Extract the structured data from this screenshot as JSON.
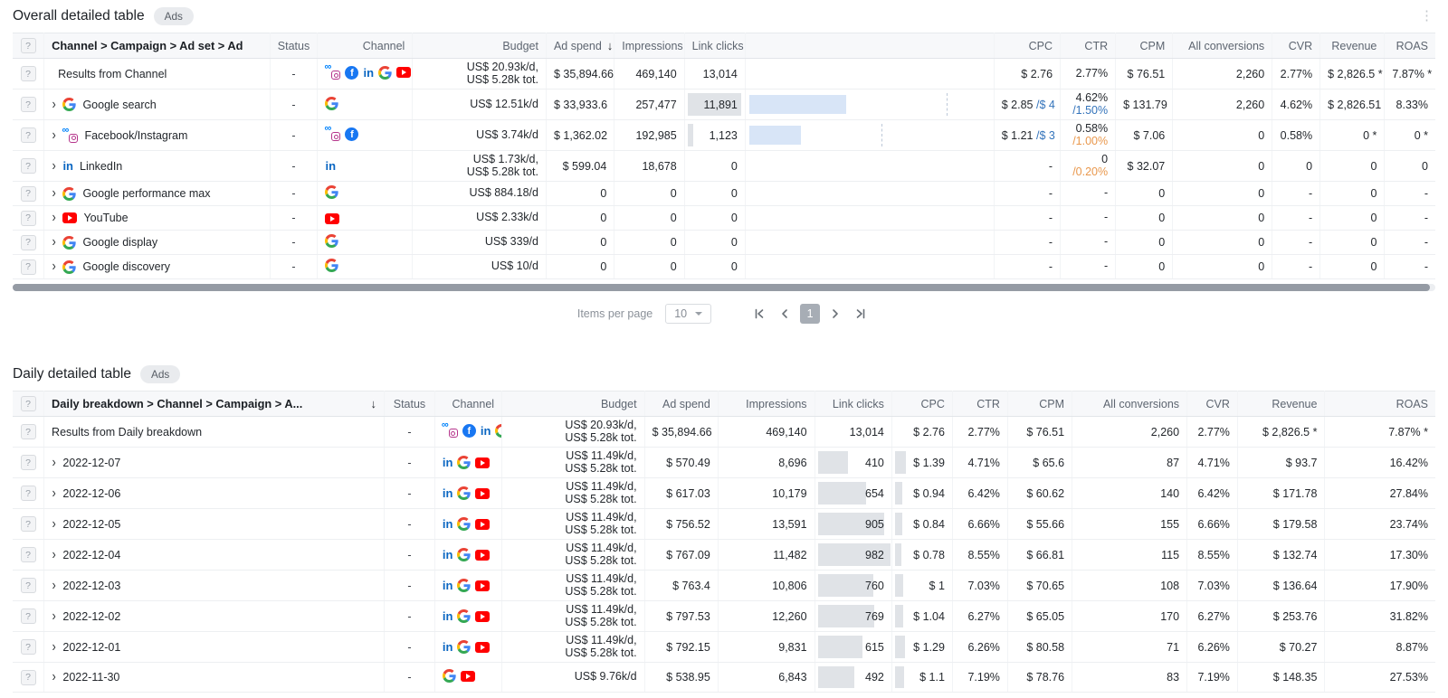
{
  "pagination": {
    "label": "Items per page",
    "value": "10",
    "page": "1"
  },
  "overall": {
    "title": "Overall detailed table",
    "badge": "Ads",
    "headers": {
      "help": "?",
      "name": "Channel > Campaign > Ad set > Ad",
      "status": "Status",
      "channel": "Channel",
      "budget": "Budget",
      "ad_spend": "Ad spend",
      "sort_icon": "↓",
      "impressions": "Impressions",
      "link_clicks": "Link clicks",
      "cpc": "CPC",
      "ctr": "CTR",
      "cpm": "CPM",
      "all_conversions": "All conversions",
      "cvr": "CVR",
      "revenue": "Revenue",
      "roas": "ROAS"
    },
    "rows": [
      {
        "name": "Results from Channel",
        "expand": false,
        "name_icons": [],
        "status": "-",
        "channel_icons": [
          "meta_instagram",
          "facebook",
          "linkedin",
          "google",
          "youtube"
        ],
        "budget1": "US$ 20.93k/d,",
        "budget2": "US$ 5.28k tot.",
        "ad_spend": "$ 35,894.66",
        "impressions": "469,140",
        "link_clicks": "13,014",
        "lc_bar": 0,
        "viz_bar": 0,
        "viz_marker": 0,
        "cpc": "$ 2.76",
        "cpc_target": "",
        "cpc_target_color": "",
        "ctr": "2.77%",
        "ctr_target": "",
        "ctr_target_color": "",
        "cpm": "$ 76.51",
        "all_conversions": "2,260",
        "cvr": "2.77%",
        "revenue": "$ 2,826.5 *",
        "roas": "7.87% *"
      },
      {
        "name": "Google search",
        "expand": true,
        "name_icons": [
          "google"
        ],
        "status": "-",
        "channel_icons": [
          "google"
        ],
        "budget1": "US$ 12.51k/d",
        "budget2": "",
        "ad_spend": "$ 33,933.6",
        "impressions": "257,477",
        "link_clicks": "11,891",
        "lc_bar": 90,
        "viz_bar": 39,
        "viz_marker": 81,
        "cpc": "$ 2.85",
        "cpc_target": "/$ 4",
        "cpc_target_color": "blue",
        "ctr": "4.62%",
        "ctr_target": "/1.50%",
        "ctr_target_color": "blue",
        "cpm": "$ 131.79",
        "all_conversions": "2,260",
        "cvr": "4.62%",
        "revenue": "$ 2,826.51",
        "roas": "8.33%"
      },
      {
        "name": "Facebook/Instagram",
        "expand": true,
        "name_icons": [
          "meta_instagram"
        ],
        "status": "-",
        "channel_icons": [
          "meta_instagram",
          "facebook"
        ],
        "budget1": "US$ 3.74k/d",
        "budget2": "",
        "ad_spend": "$ 1,362.02",
        "impressions": "192,985",
        "link_clicks": "1,123",
        "lc_bar": 9,
        "viz_bar": 21,
        "viz_marker": 55,
        "cpc": "$ 1.21",
        "cpc_target": "/$ 3",
        "cpc_target_color": "blue",
        "ctr": "0.58%",
        "ctr_target": "/1.00%",
        "ctr_target_color": "orange",
        "cpm": "$ 7.06",
        "all_conversions": "0",
        "cvr": "0.58%",
        "revenue": "0 *",
        "roas": "0 *"
      },
      {
        "name": "LinkedIn",
        "expand": true,
        "name_icons": [
          "linkedin"
        ],
        "status": "-",
        "channel_icons": [
          "linkedin"
        ],
        "budget1": "US$ 1.73k/d,",
        "budget2": "US$ 5.28k tot.",
        "ad_spend": "$ 599.04",
        "impressions": "18,678",
        "link_clicks": "0",
        "lc_bar": 0,
        "viz_bar": 0,
        "viz_marker": 0,
        "cpc": "-",
        "cpc_target": "",
        "cpc_target_color": "",
        "ctr": "0",
        "ctr_target": "/0.20%",
        "ctr_target_color": "orange",
        "cpm": "$ 32.07",
        "all_conversions": "0",
        "cvr": "0",
        "revenue": "0",
        "roas": "0"
      },
      {
        "name": "Google performance max",
        "expand": true,
        "name_icons": [
          "google"
        ],
        "status": "-",
        "channel_icons": [
          "google"
        ],
        "budget1": "US$ 884.18/d",
        "budget2": "",
        "ad_spend": "0",
        "impressions": "0",
        "link_clicks": "0",
        "lc_bar": 0,
        "viz_bar": 0,
        "viz_marker": 0,
        "cpc": "-",
        "cpc_target": "",
        "cpc_target_color": "",
        "ctr": "-",
        "ctr_target": "",
        "ctr_target_color": "",
        "cpm": "0",
        "all_conversions": "0",
        "cvr": "-",
        "revenue": "0",
        "roas": "-"
      },
      {
        "name": "YouTube",
        "expand": true,
        "name_icons": [
          "youtube"
        ],
        "status": "-",
        "channel_icons": [
          "youtube"
        ],
        "budget1": "US$ 2.33k/d",
        "budget2": "",
        "ad_spend": "0",
        "impressions": "0",
        "link_clicks": "0",
        "lc_bar": 0,
        "viz_bar": 0,
        "viz_marker": 0,
        "cpc": "-",
        "cpc_target": "",
        "cpc_target_color": "",
        "ctr": "-",
        "ctr_target": "",
        "ctr_target_color": "",
        "cpm": "0",
        "all_conversions": "0",
        "cvr": "-",
        "revenue": "0",
        "roas": "-"
      },
      {
        "name": "Google display",
        "expand": true,
        "name_icons": [
          "google"
        ],
        "status": "-",
        "channel_icons": [
          "google"
        ],
        "budget1": "US$ 339/d",
        "budget2": "",
        "ad_spend": "0",
        "impressions": "0",
        "link_clicks": "0",
        "lc_bar": 0,
        "viz_bar": 0,
        "viz_marker": 0,
        "cpc": "-",
        "cpc_target": "",
        "cpc_target_color": "",
        "ctr": "-",
        "ctr_target": "",
        "ctr_target_color": "",
        "cpm": "0",
        "all_conversions": "0",
        "cvr": "-",
        "revenue": "0",
        "roas": "-"
      },
      {
        "name": "Google discovery",
        "expand": true,
        "name_icons": [
          "google"
        ],
        "status": "-",
        "channel_icons": [
          "google"
        ],
        "budget1": "US$ 10/d",
        "budget2": "",
        "ad_spend": "0",
        "impressions": "0",
        "link_clicks": "0",
        "lc_bar": 0,
        "viz_bar": 0,
        "viz_marker": 0,
        "cpc": "-",
        "cpc_target": "",
        "cpc_target_color": "",
        "ctr": "-",
        "ctr_target": "",
        "ctr_target_color": "",
        "cpm": "0",
        "all_conversions": "0",
        "cvr": "-",
        "revenue": "0",
        "roas": "-"
      }
    ]
  },
  "daily": {
    "title": "Daily detailed table",
    "badge": "Ads",
    "headers": {
      "help": "?",
      "name": "Daily breakdown > Channel > Campaign > A...",
      "sort_icon": "↓",
      "status": "Status",
      "channel": "Channel",
      "budget": "Budget",
      "ad_spend": "Ad spend",
      "impressions": "Impressions",
      "link_clicks": "Link clicks",
      "cpc": "CPC",
      "ctr": "CTR",
      "cpm": "CPM",
      "all_conversions": "All conversions",
      "cvr": "CVR",
      "revenue": "Revenue",
      "roas": "ROAS"
    },
    "rows": [
      {
        "name": "Results from Daily breakdown",
        "expand": false,
        "status": "-",
        "channel_icons": [
          "meta_instagram",
          "facebook",
          "linkedin",
          "google",
          "youtube"
        ],
        "budget1": "US$ 20.93k/d,",
        "budget2": "US$ 5.28k tot.",
        "ad_spend": "$ 35,894.66",
        "impressions": "469,140",
        "link_clicks": "13,014",
        "lc_bar": 0,
        "cpc": "$ 2.76",
        "cpc_bar": 0,
        "ctr": "2.77%",
        "cpm": "$ 76.51",
        "all_conversions": "2,260",
        "cvr": "2.77%",
        "revenue": "$ 2,826.5 *",
        "roas": "7.87% *"
      },
      {
        "name": "2022-12-07",
        "expand": true,
        "status": "-",
        "channel_icons": [
          "linkedin",
          "google",
          "youtube"
        ],
        "budget1": "US$ 11.49k/d,",
        "budget2": "US$ 5.28k tot.",
        "ad_spend": "$ 570.49",
        "impressions": "8,696",
        "link_clicks": "410",
        "lc_bar": 40,
        "cpc": "$ 1.39",
        "cpc_bar": 18,
        "ctr": "4.71%",
        "cpm": "$ 65.6",
        "all_conversions": "87",
        "cvr": "4.71%",
        "revenue": "$ 93.7",
        "roas": "16.42%"
      },
      {
        "name": "2022-12-06",
        "expand": true,
        "status": "-",
        "channel_icons": [
          "linkedin",
          "google",
          "youtube"
        ],
        "budget1": "US$ 11.49k/d,",
        "budget2": "US$ 5.28k tot.",
        "ad_spend": "$ 617.03",
        "impressions": "10,179",
        "link_clicks": "654",
        "lc_bar": 63,
        "cpc": "$ 0.94",
        "cpc_bar": 13,
        "ctr": "6.42%",
        "cpm": "$ 60.62",
        "all_conversions": "140",
        "cvr": "6.42%",
        "revenue": "$ 171.78",
        "roas": "27.84%"
      },
      {
        "name": "2022-12-05",
        "expand": true,
        "status": "-",
        "channel_icons": [
          "linkedin",
          "google",
          "youtube"
        ],
        "budget1": "US$ 11.49k/d,",
        "budget2": "US$ 5.28k tot.",
        "ad_spend": "$ 756.52",
        "impressions": "13,591",
        "link_clicks": "905",
        "lc_bar": 87,
        "cpc": "$ 0.84",
        "cpc_bar": 12,
        "ctr": "6.66%",
        "cpm": "$ 55.66",
        "all_conversions": "155",
        "cvr": "6.66%",
        "revenue": "$ 179.58",
        "roas": "23.74%"
      },
      {
        "name": "2022-12-04",
        "expand": true,
        "status": "-",
        "channel_icons": [
          "linkedin",
          "google",
          "youtube"
        ],
        "budget1": "US$ 11.49k/d,",
        "budget2": "US$ 5.28k tot.",
        "ad_spend": "$ 767.09",
        "impressions": "11,482",
        "link_clicks": "982",
        "lc_bar": 95,
        "cpc": "$ 0.78",
        "cpc_bar": 11,
        "ctr": "8.55%",
        "cpm": "$ 66.81",
        "all_conversions": "115",
        "cvr": "8.55%",
        "revenue": "$ 132.74",
        "roas": "17.30%"
      },
      {
        "name": "2022-12-03",
        "expand": true,
        "status": "-",
        "channel_icons": [
          "linkedin",
          "google",
          "youtube"
        ],
        "budget1": "US$ 11.49k/d,",
        "budget2": "US$ 5.28k tot.",
        "ad_spend": "$ 763.4",
        "impressions": "10,806",
        "link_clicks": "760",
        "lc_bar": 73,
        "cpc": "$ 1",
        "cpc_bar": 14,
        "ctr": "7.03%",
        "cpm": "$ 70.65",
        "all_conversions": "108",
        "cvr": "7.03%",
        "revenue": "$ 136.64",
        "roas": "17.90%"
      },
      {
        "name": "2022-12-02",
        "expand": true,
        "status": "-",
        "channel_icons": [
          "linkedin",
          "google",
          "youtube"
        ],
        "budget1": "US$ 11.49k/d,",
        "budget2": "US$ 5.28k tot.",
        "ad_spend": "$ 797.53",
        "impressions": "12,260",
        "link_clicks": "769",
        "lc_bar": 74,
        "cpc": "$ 1.04",
        "cpc_bar": 14,
        "ctr": "6.27%",
        "cpm": "$ 65.05",
        "all_conversions": "170",
        "cvr": "6.27%",
        "revenue": "$ 253.76",
        "roas": "31.82%"
      },
      {
        "name": "2022-12-01",
        "expand": true,
        "status": "-",
        "channel_icons": [
          "linkedin",
          "google",
          "youtube"
        ],
        "budget1": "US$ 11.49k/d,",
        "budget2": "US$ 5.28k tot.",
        "ad_spend": "$ 792.15",
        "impressions": "9,831",
        "link_clicks": "615",
        "lc_bar": 59,
        "cpc": "$ 1.29",
        "cpc_bar": 17,
        "ctr": "6.26%",
        "cpm": "$ 80.58",
        "all_conversions": "71",
        "cvr": "6.26%",
        "revenue": "$ 70.27",
        "roas": "8.87%"
      },
      {
        "name": "2022-11-30",
        "expand": true,
        "status": "-",
        "channel_icons": [
          "google",
          "youtube"
        ],
        "budget1": "US$ 9.76k/d",
        "budget2": "",
        "ad_spend": "$ 538.95",
        "impressions": "6,843",
        "link_clicks": "492",
        "lc_bar": 48,
        "cpc": "$ 1.1",
        "cpc_bar": 15,
        "ctr": "7.19%",
        "cpm": "$ 78.76",
        "all_conversions": "83",
        "cvr": "7.19%",
        "revenue": "$ 148.35",
        "roas": "27.53%"
      }
    ]
  }
}
